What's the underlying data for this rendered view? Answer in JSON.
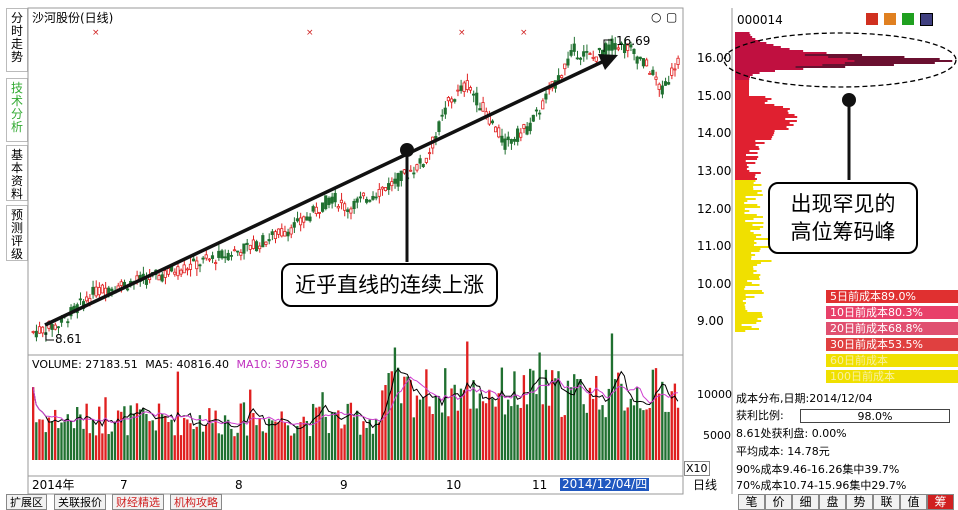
{
  "header": {
    "title": "沙河股份(日线)"
  },
  "side_tabs": [
    "分时走势",
    "技术分析",
    "基本资料",
    "预测评级"
  ],
  "price_axis": {
    "labels": [
      "16.00",
      "15.00",
      "14.00",
      "13.00",
      "12.00",
      "11.00",
      "10.00",
      "9.00"
    ],
    "values": [
      16,
      15,
      14,
      13,
      12,
      11,
      10,
      9
    ]
  },
  "annotations": {
    "high_label": "16.69",
    "low_label": "8.61",
    "note_line": "近乎直线的连续上涨",
    "note_peak_1": "出现罕见的",
    "note_peak_2": "高位筹码峰"
  },
  "volume": {
    "label": "VOLUME:",
    "vol_value": "27183.51",
    "ma5_label": "MA5:",
    "ma5_value": "40816.40",
    "ma10_label": "MA10:",
    "ma10_value": "30735.80",
    "axis_labels": [
      "10000",
      "5000"
    ],
    "unit": "X10"
  },
  "date_axis": {
    "labels": [
      "2014年",
      "7",
      "8",
      "9",
      "10",
      "11"
    ],
    "selected_date": "2014/12/04/四",
    "period": "日线"
  },
  "code_panel": {
    "code": "000014"
  },
  "cost_legend": [
    "5日前成本89.0%",
    "10日前成本80.3%",
    "20日前成本68.8%",
    "30日前成本53.5%",
    "60日前成本",
    "100日前成本"
  ],
  "cost_stats": {
    "title": "成本分布,日期:",
    "date": "2014/12/04",
    "profit_label": "获利比例:",
    "profit_value": "98.0%",
    "l3": "8.61处获利盘: 0.00%",
    "l4": "平均成本: 14.78元",
    "l5": "90%成本9.46-16.26集中39.7%",
    "l6": "70%成本10.74-15.96集中29.7%"
  },
  "bottom_tabs": [
    "扩展区",
    "关联报价",
    "财经精选",
    "机构攻略"
  ],
  "right_tabs": [
    "笔",
    "价",
    "细",
    "盘",
    "势",
    "联",
    "值",
    "筹"
  ],
  "colors": {
    "up": "#e02020",
    "down": "#207030",
    "ma5": "#000000",
    "ma10": "#d040d0",
    "yellow": "#f0e000"
  }
}
